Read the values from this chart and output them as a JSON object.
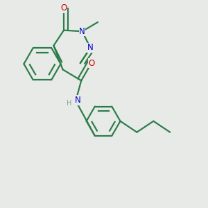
{
  "background_color": "#e8eae8",
  "bond_color": "#2d7d4a",
  "bond_width": 1.6,
  "atom_colors": {
    "O": "#cc0000",
    "N": "#0000cc",
    "C": "#000000",
    "H": "#7aaa88"
  },
  "font_size_atom": 8.5,
  "font_size_methyl": 7.5,
  "font_size_H": 7.0
}
